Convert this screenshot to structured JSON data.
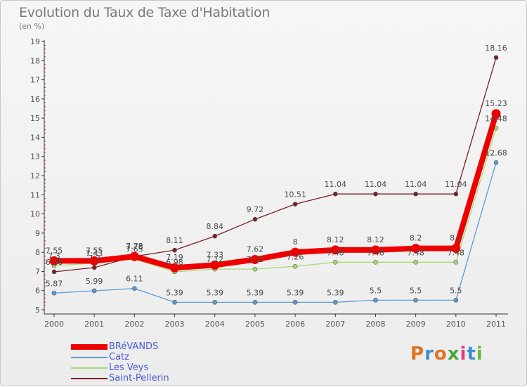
{
  "title": "Evolution du Taux de Taxe d'Habitation",
  "unit": "(en %)",
  "logo": {
    "letters": [
      "P",
      "r",
      "o",
      "x",
      "i",
      "t",
      "i"
    ],
    "colors": [
      "#e0731f",
      "#3d8fd1",
      "#e0731f",
      "#4aa836",
      "#e23b7a",
      "#3d8fd1",
      "#6fb93a"
    ]
  },
  "chart_data": {
    "type": "line",
    "title": "Evolution du Taux de Taxe d'Habitation",
    "ylabel": "(en %)",
    "xlabel": "",
    "x": [
      "2000",
      "2001",
      "2002",
      "2003",
      "2004",
      "2005",
      "2006",
      "2007",
      "2008",
      "2009",
      "2010",
      "2011"
    ],
    "ylim": [
      5,
      19
    ],
    "yticks": [
      "5",
      "6",
      "7",
      "8",
      "9",
      "10",
      "11",
      "12",
      "13",
      "14",
      "15",
      "16",
      "17",
      "18",
      "19"
    ],
    "grid": false,
    "legend_position": "bottom-left",
    "series": [
      {
        "name": "BRéVANDS",
        "color": "#ee0000",
        "values": [
          7.55,
          7.55,
          7.78,
          7.19,
          7.33,
          7.62,
          8,
          8.12,
          8.12,
          8.2,
          8.2,
          15.23
        ],
        "labels": [
          "7.55",
          "7.55",
          "7.78",
          "7.19",
          "7.33",
          "7.62",
          "8",
          "8.12",
          "8.12",
          "8.2",
          "8.2",
          "15.23"
        ]
      },
      {
        "name": "Catz",
        "color": "#5b9bd5",
        "values": [
          5.87,
          5.99,
          6.11,
          5.39,
          5.39,
          5.39,
          5.39,
          5.39,
          5.5,
          5.5,
          5.5,
          12.68
        ],
        "labels": [
          "5.87",
          "5.99",
          "6.11",
          "5.39",
          "5.39",
          "5.39",
          "5.39",
          "5.39",
          "5.5",
          "5.5",
          "5.5",
          "12.68"
        ]
      },
      {
        "name": "Les Veys",
        "color": "#a6dc72",
        "values": [
          7.3,
          7.43,
          7.65,
          6.98,
          7.12,
          7.12,
          7.26,
          7.48,
          7.48,
          7.48,
          7.48,
          14.48
        ],
        "labels": [
          "7.3",
          "7.43",
          "7.65",
          "6.98",
          "7.12",
          "7.12",
          "7.26",
          "7.48",
          "7.48",
          "7.48",
          "7.48",
          "14.48"
        ]
      },
      {
        "name": "Saint-Pellerin",
        "color": "#7a2020",
        "values": [
          6.98,
          7.2,
          7.78,
          8.11,
          8.84,
          9.72,
          10.51,
          11.04,
          11.04,
          11.04,
          11.04,
          18.16
        ],
        "labels": [
          "6.98",
          "7.2",
          "7.78",
          "8.11",
          "8.84",
          "9.72",
          "10.51",
          "11.04",
          "11.04",
          "11.04",
          "11.04",
          "18.16"
        ]
      }
    ]
  }
}
